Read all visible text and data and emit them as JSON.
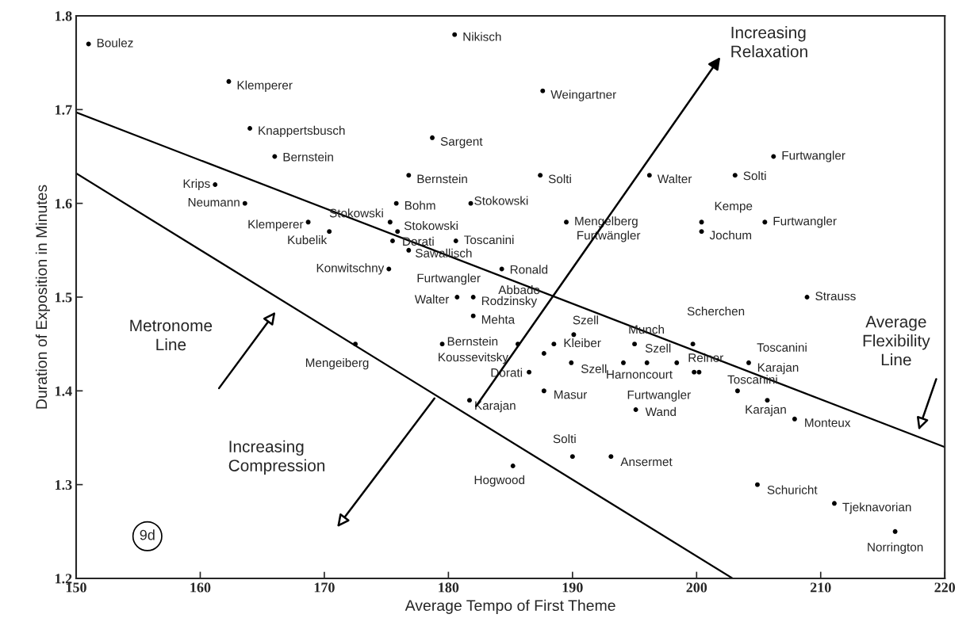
{
  "chart_data": {
    "type": "scatter",
    "xlabel": "Average Tempo of First Theme",
    "ylabel": "Duration of Exposition in Minutes",
    "xlim": [
      150,
      220
    ],
    "xticks": [
      150,
      160,
      170,
      180,
      190,
      200,
      210,
      220
    ],
    "ylim": [
      1.2,
      1.8
    ],
    "yticks": [
      1.2,
      1.3,
      1.4,
      1.5,
      1.6,
      1.7,
      1.8
    ],
    "grid": false,
    "series": [
      {
        "marker": "circle",
        "color": "#000000",
        "x": [
          151.0,
          162.3,
          164.0,
          166.0,
          161.2,
          163.6,
          168.7,
          170.4,
          175.2,
          175.8,
          175.3,
          175.9,
          175.5,
          180.5,
          187.6,
          178.7,
          176.8,
          187.4,
          196.2,
          181.8,
          189.5,
          180.6,
          176.8,
          184.3,
          180.7,
          182.0,
          182.0,
          179.5,
          185.6,
          188.5,
          190.1,
          187.7,
          189.9,
          186.5,
          181.7,
          187.7,
          195.0,
          199.7,
          194.1,
          196.0,
          198.4,
          199.8,
          200.2,
          195.1,
          190.0,
          193.1,
          185.2,
          172.5,
          204.2,
          203.3,
          205.7,
          207.9,
          200.4,
          200.4,
          205.5,
          203.1,
          206.2,
          208.9,
          204.9,
          211.1,
          216.0
        ],
        "values": [
          1.77,
          1.73,
          1.68,
          1.65,
          1.62,
          1.6,
          1.58,
          1.57,
          1.53,
          1.6,
          1.58,
          1.57,
          1.56,
          1.78,
          1.72,
          1.67,
          1.63,
          1.63,
          1.63,
          1.6,
          1.58,
          1.56,
          1.55,
          1.53,
          1.5,
          1.5,
          1.48,
          1.45,
          1.45,
          1.45,
          1.46,
          1.44,
          1.43,
          1.42,
          1.39,
          1.4,
          1.45,
          1.45,
          1.43,
          1.43,
          1.43,
          1.42,
          1.42,
          1.38,
          1.33,
          1.33,
          1.32,
          1.45,
          1.43,
          1.4,
          1.39,
          1.37,
          1.58,
          1.57,
          1.58,
          1.63,
          1.65,
          1.5,
          1.3,
          1.28,
          1.25
        ],
        "value_labels": [
          "Boulez",
          "Klemperer",
          "Knappertsbusch",
          "Bernstein",
          "Krips",
          "Neumann",
          "Klemperer",
          "Kubelik",
          "Konwitschny",
          "Bohm",
          "Stokowski",
          "Stokowski",
          "Dorati",
          "Nikisch",
          "Weingartner",
          "Sargent",
          "Bernstein",
          "Solti",
          "Walter",
          "Stokowski",
          "Mengelberg",
          "Toscanini",
          "Sawallisch",
          "Ronald",
          "Walter",
          "Rodzinsky",
          "Mehta",
          "Bernstein",
          "Koussevitsky",
          "Kleiber",
          "Szell",
          null,
          "Szell",
          "Dorati",
          "Karajan",
          "Masur",
          "Munch",
          "Scherchen",
          "Harnoncourt",
          "Szell",
          "Reiner",
          "Furtwangler",
          null,
          "Wand",
          "Solti",
          "Ansermet",
          "Hogwood",
          "Mengeiberg",
          "Toscanini",
          "Toscanini",
          "Karajan",
          "Monteux",
          "Kempe",
          "Jochum",
          "Furtwangler",
          "Solti",
          "Furtwangler",
          "Strauss",
          "Schuricht",
          "Tjeknavorian",
          "Norrington"
        ]
      },
      {
        "type": "line",
        "color": "#000000",
        "x": [
          150,
          202.9
        ],
        "values": [
          1.632,
          1.2
        ]
      },
      {
        "type": "line",
        "color": "#000000",
        "x": [
          150,
          220
        ],
        "values": [
          1.697,
          1.34
        ]
      }
    ],
    "annotations": [
      "Increasing\nRelaxation",
      "Increasing\nCompression",
      "Metronome\nLine",
      "Average\nFlexibility\nLine",
      "9d",
      "Furtwängler",
      "Furtwangler",
      "Abbado",
      "Karajan"
    ]
  }
}
